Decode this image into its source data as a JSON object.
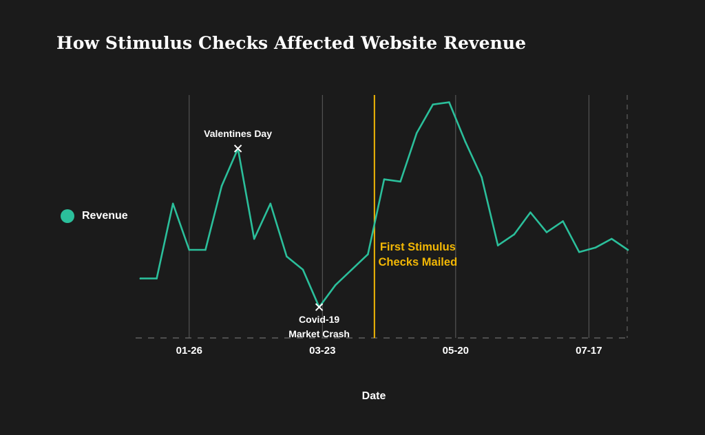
{
  "title": "How Stimulus Checks Affected Website Revenue",
  "legend": {
    "label": "Revenue",
    "color": "#2bbf9b"
  },
  "colors": {
    "background": "#1b1b1b",
    "series": "#2bbf9b",
    "event_line": "#f2b705",
    "gridline": "#5f5f5f",
    "marker": "#ffffff"
  },
  "chart_data": {
    "type": "line",
    "title": "How Stimulus Checks Affected Website Revenue",
    "xlabel": "Date",
    "ylabel": "",
    "grid": "vertical lines at x tick labels",
    "legend_position": "left",
    "x_tick_labels": [
      "01-26",
      "03-23",
      "05-20",
      "07-17"
    ],
    "series": [
      {
        "name": "Revenue",
        "values": [
          0.27,
          0.27,
          0.61,
          0.4,
          0.4,
          0.69,
          0.86,
          0.45,
          0.61,
          0.37,
          0.31,
          0.14,
          0.24,
          0.31,
          0.38,
          0.72,
          0.71,
          0.93,
          1.06,
          1.07,
          0.89,
          0.73,
          0.42,
          0.47,
          0.57,
          0.48,
          0.53,
          0.39,
          0.41,
          0.45,
          0.4
        ]
      }
    ],
    "annotations": [
      {
        "index": 6,
        "lines": [
          "Valentines Day"
        ],
        "position": "above"
      },
      {
        "index": 11,
        "lines": [
          "Covid-19",
          "Market Crash"
        ],
        "position": "below"
      }
    ],
    "events": [
      {
        "position_index": 14.4,
        "lines": [
          "First Stimulus",
          "Checks Mailed"
        ]
      }
    ]
  }
}
